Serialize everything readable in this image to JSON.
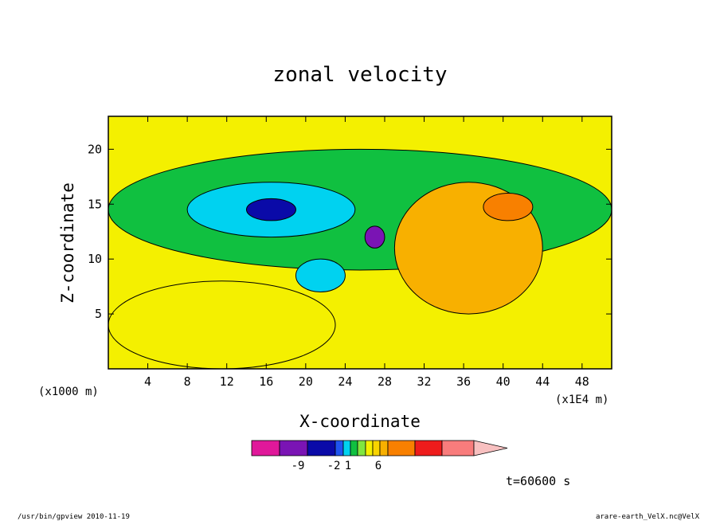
{
  "chart_data": {
    "type": "heatmap",
    "title": "zonal velocity",
    "xlabel": "X-coordinate",
    "ylabel": "Z-coordinate",
    "x_unit": "(x1E4 m)",
    "y_unit": "(x1000 m)",
    "xlim": [
      0,
      51
    ],
    "ylim": [
      0,
      23
    ],
    "x_ticks": [
      "4",
      "8",
      "12",
      "16",
      "20",
      "24",
      "28",
      "32",
      "36",
      "40",
      "44",
      "48"
    ],
    "y_ticks": [
      "5",
      "10",
      "15",
      "20"
    ],
    "time_label": "t=60600 s",
    "colorbar": {
      "ticks": [
        "-9",
        "-2",
        "1",
        "6"
      ],
      "colors": [
        "#e0189a",
        "#7a14b4",
        "#0a0aa8",
        "#1f55f0",
        "#00d2f0",
        "#10c040",
        "#80e640",
        "#f4f000",
        "#f8d400",
        "#f8b000",
        "#f88000",
        "#ee1c1c",
        "#f87c7c",
        "#f8c0c0"
      ]
    },
    "regions": [
      {
        "name": "green-upper-belt",
        "level": "#10c040",
        "x": [
          0,
          51
        ],
        "z": [
          9,
          20
        ]
      },
      {
        "name": "yellow-lower-left",
        "level": "#f4f000",
        "x": [
          0,
          23
        ],
        "z": [
          0,
          8
        ]
      },
      {
        "name": "cyan-left-lobe",
        "level": "#00d2f0",
        "x": [
          8,
          25
        ],
        "z": [
          12,
          17
        ]
      },
      {
        "name": "blue-left-core",
        "level": "#0a0aa8",
        "x": [
          14,
          19
        ],
        "z": [
          13.5,
          15.5
        ]
      },
      {
        "name": "purple-core",
        "level": "#7a14b4",
        "x": [
          26,
          28
        ],
        "z": [
          11,
          13
        ]
      },
      {
        "name": "orange-right-lobe",
        "level": "#f8b000",
        "x": [
          29,
          44
        ],
        "z": [
          5,
          17
        ]
      },
      {
        "name": "red-orange-right-core",
        "level": "#f88000",
        "x": [
          38,
          43
        ],
        "z": [
          13.5,
          16
        ]
      },
      {
        "name": "cyan-lower-center",
        "level": "#00d2f0",
        "x": [
          19,
          24
        ],
        "z": [
          7,
          10
        ]
      }
    ]
  },
  "footer": {
    "left": "/usr/bin/gpview   2010-11-19",
    "right": "arare-earth_VelX.nc@VelX"
  }
}
